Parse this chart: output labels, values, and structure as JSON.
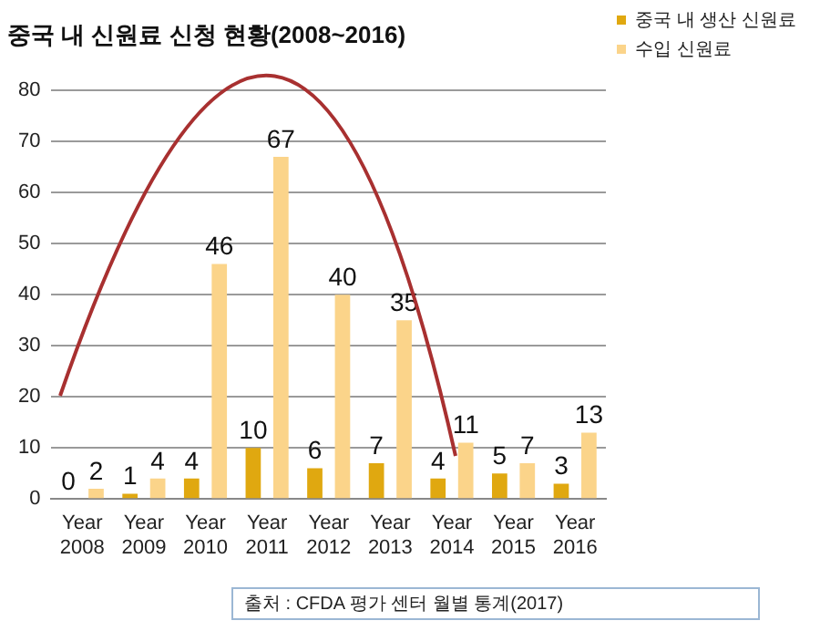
{
  "chart_data": {
    "type": "bar",
    "title": "중국 내 신원료 신청 현황(2008~2016)",
    "categories": [
      "Year 2008",
      "Year 2009",
      "Year 2010",
      "Year 2011",
      "Year 2012",
      "Year 2013",
      "Year 2014",
      "Year 2015",
      "Year 2016"
    ],
    "series": [
      {
        "name": "중국 내 생산 신원료",
        "color": "#e0a810",
        "values": [
          0,
          1,
          4,
          10,
          6,
          7,
          4,
          5,
          3
        ]
      },
      {
        "name": "수입 신원료",
        "color": "#fbd48a",
        "values": [
          2,
          4,
          46,
          67,
          40,
          35,
          11,
          7,
          13
        ]
      }
    ],
    "ylim": [
      0,
      80
    ],
    "yticks": [
      0,
      10,
      20,
      30,
      40,
      50,
      60,
      70,
      80
    ],
    "grid": "y",
    "legend": "right",
    "data_labels": true,
    "annotations": [
      "출처 : CFDA 평가 센터 월별 통계(2017)"
    ]
  }
}
